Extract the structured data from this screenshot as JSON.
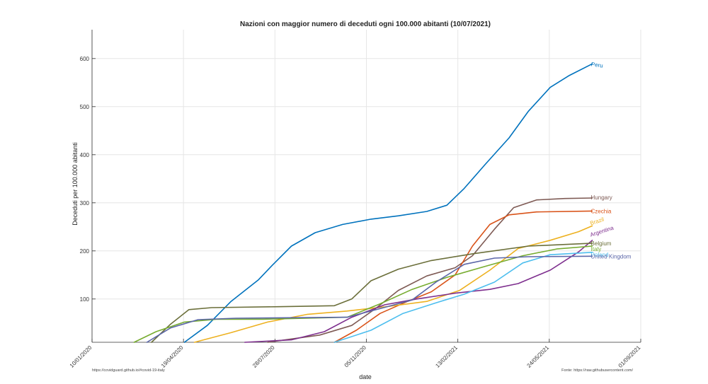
{
  "chart_data": {
    "type": "line",
    "title": "Nazioni con maggior numero di deceduti ogni 100.000 abitanti (10/07/2021)",
    "xlabel": "date",
    "ylabel": "Deceduti per 100.000 abitanti",
    "x_ticks": [
      "10/01/2020",
      "19/04/2020",
      "28/07/2020",
      "05/11/2020",
      "13/02/2021",
      "24/05/2021",
      "01/09/2021"
    ],
    "y_ticks": [
      100,
      200,
      300,
      400,
      500,
      600
    ],
    "xlim": [
      "2020-01-10",
      "2021-09-01"
    ],
    "ylim": [
      10,
      660
    ],
    "grid": true,
    "legend": "labels at line ends",
    "series": [
      {
        "name": "Peru",
        "color": "#0072BD",
        "points": [
          [
            "2020-04-20",
            10
          ],
          [
            "2020-05-15",
            45
          ],
          [
            "2020-06-10",
            95
          ],
          [
            "2020-07-10",
            140
          ],
          [
            "2020-07-25",
            170
          ],
          [
            "2020-08-15",
            210
          ],
          [
            "2020-09-10",
            238
          ],
          [
            "2020-10-10",
            255
          ],
          [
            "2020-11-10",
            266
          ],
          [
            "2020-12-10",
            273
          ],
          [
            "2021-01-10",
            282
          ],
          [
            "2021-02-01",
            295
          ],
          [
            "2021-02-20",
            330
          ],
          [
            "2021-03-15",
            380
          ],
          [
            "2021-04-10",
            435
          ],
          [
            "2021-05-01",
            490
          ],
          [
            "2021-05-25",
            540
          ],
          [
            "2021-06-15",
            565
          ],
          [
            "2021-07-10",
            589
          ]
        ]
      },
      {
        "name": "Hungary",
        "color": "#7E5A54",
        "points": [
          [
            "2020-07-20",
            10
          ],
          [
            "2020-09-15",
            25
          ],
          [
            "2020-10-20",
            45
          ],
          [
            "2020-11-15",
            80
          ],
          [
            "2020-12-10",
            118
          ],
          [
            "2021-01-10",
            148
          ],
          [
            "2021-02-10",
            165
          ],
          [
            "2021-03-01",
            190
          ],
          [
            "2021-03-25",
            245
          ],
          [
            "2021-04-15",
            290
          ],
          [
            "2021-05-10",
            306
          ],
          [
            "2021-06-10",
            309
          ],
          [
            "2021-07-10",
            310
          ]
        ]
      },
      {
        "name": "Czechia",
        "color": "#D95319",
        "points": [
          [
            "2020-10-01",
            10
          ],
          [
            "2020-10-25",
            35
          ],
          [
            "2020-11-20",
            70
          ],
          [
            "2020-12-20",
            95
          ],
          [
            "2021-01-15",
            115
          ],
          [
            "2021-02-10",
            150
          ],
          [
            "2021-03-01",
            210
          ],
          [
            "2021-03-20",
            255
          ],
          [
            "2021-04-10",
            275
          ],
          [
            "2021-05-10",
            281
          ],
          [
            "2021-07-10",
            283
          ]
        ]
      },
      {
        "name": "Brazil",
        "color": "#EDB120",
        "points": [
          [
            "2020-05-01",
            10
          ],
          [
            "2020-06-10",
            30
          ],
          [
            "2020-07-20",
            52
          ],
          [
            "2020-09-01",
            68
          ],
          [
            "2020-10-15",
            75
          ],
          [
            "2020-12-01",
            85
          ],
          [
            "2021-01-10",
            95
          ],
          [
            "2021-02-15",
            118
          ],
          [
            "2021-03-20",
            160
          ],
          [
            "2021-04-20",
            205
          ],
          [
            "2021-05-25",
            222
          ],
          [
            "2021-06-25",
            240
          ],
          [
            "2021-07-10",
            252
          ]
        ]
      },
      {
        "name": "Argentina",
        "color": "#7E2F8E",
        "points": [
          [
            "2020-06-25",
            10
          ],
          [
            "2020-08-15",
            15
          ],
          [
            "2020-09-20",
            32
          ],
          [
            "2020-10-20",
            62
          ],
          [
            "2020-11-25",
            88
          ],
          [
            "2020-12-30",
            100
          ],
          [
            "2021-02-10",
            112
          ],
          [
            "2021-03-20",
            120
          ],
          [
            "2021-04-20",
            132
          ],
          [
            "2021-05-25",
            160
          ],
          [
            "2021-06-25",
            198
          ],
          [
            "2021-07-10",
            222
          ]
        ]
      },
      {
        "name": "Belgium",
        "color": "#6B6F3A",
        "points": [
          [
            "2020-03-15",
            10
          ],
          [
            "2020-04-05",
            48
          ],
          [
            "2020-04-25",
            78
          ],
          [
            "2020-05-20",
            82
          ],
          [
            "2020-08-01",
            84
          ],
          [
            "2020-10-01",
            86
          ],
          [
            "2020-10-20",
            100
          ],
          [
            "2020-11-10",
            138
          ],
          [
            "2020-12-10",
            162
          ],
          [
            "2021-01-15",
            180
          ],
          [
            "2021-03-01",
            194
          ],
          [
            "2021-05-01",
            210
          ],
          [
            "2021-07-10",
            216
          ]
        ]
      },
      {
        "name": "Italy",
        "color": "#77AC30",
        "points": [
          [
            "2020-02-25",
            10
          ],
          [
            "2020-03-20",
            32
          ],
          [
            "2020-04-20",
            52
          ],
          [
            "2020-05-25",
            58
          ],
          [
            "2020-07-15",
            58
          ],
          [
            "2020-10-15",
            62
          ],
          [
            "2020-11-20",
            90
          ],
          [
            "2020-12-25",
            120
          ],
          [
            "2021-02-01",
            145
          ],
          [
            "2021-03-15",
            168
          ],
          [
            "2021-04-25",
            190
          ],
          [
            "2021-06-01",
            204
          ],
          [
            "2021-07-10",
            210
          ]
        ]
      },
      {
        "name": "Poland",
        "color": "#4DBEEE",
        "points": [
          [
            "2020-10-01",
            10
          ],
          [
            "2020-11-10",
            35
          ],
          [
            "2020-12-15",
            70
          ],
          [
            "2021-01-20",
            92
          ],
          [
            "2021-02-20",
            110
          ],
          [
            "2021-03-25",
            135
          ],
          [
            "2021-04-25",
            175
          ],
          [
            "2021-05-25",
            192
          ],
          [
            "2021-07-10",
            197
          ]
        ]
      },
      {
        "name": "United Kingdom",
        "color": "#5B66A8",
        "points": [
          [
            "2020-03-10",
            10
          ],
          [
            "2020-04-05",
            40
          ],
          [
            "2020-05-05",
            57
          ],
          [
            "2020-06-15",
            60
          ],
          [
            "2020-10-15",
            62
          ],
          [
            "2020-11-20",
            80
          ],
          [
            "2020-12-25",
            98
          ],
          [
            "2021-01-20",
            135
          ],
          [
            "2021-02-20",
            172
          ],
          [
            "2021-03-25",
            185
          ],
          [
            "2021-05-01",
            188
          ],
          [
            "2021-07-10",
            189
          ]
        ]
      }
    ]
  },
  "footer": {
    "left": "https://covidguard.github.io/#covid-19-italy",
    "right": "Fonte: https://raw.githubusercontent.com/"
  }
}
